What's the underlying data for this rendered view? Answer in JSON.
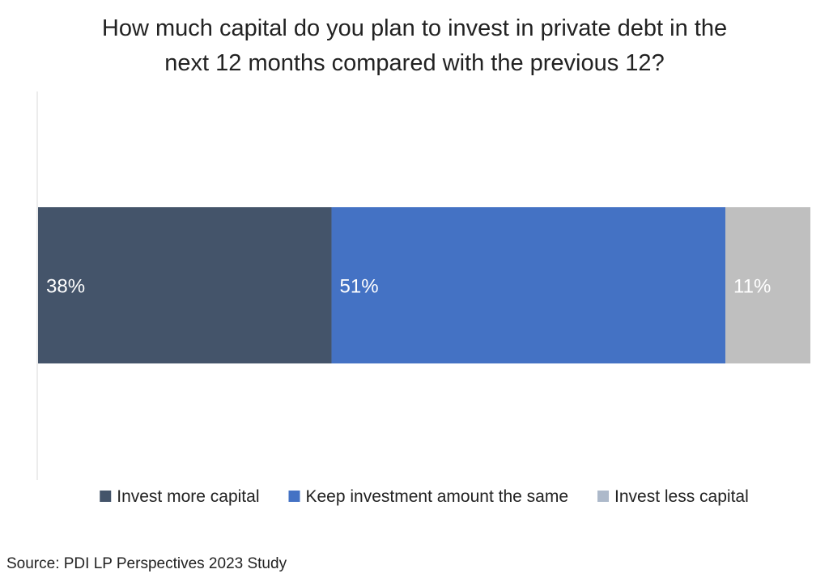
{
  "chart_data": {
    "type": "bar",
    "orientation": "horizontal",
    "stacked": true,
    "title_lines": [
      "How much capital do you plan to invest in private debt in the",
      "next 12 months compared with the previous 12?"
    ],
    "categories": [
      ""
    ],
    "series": [
      {
        "name": "Invest more capital",
        "values": [
          38
        ],
        "label": "38%",
        "color": "#44546a",
        "label_color": "#ffffff"
      },
      {
        "name": "Keep investment amount the same",
        "values": [
          51
        ],
        "label": "51%",
        "color": "#4472c4",
        "label_color": "#ffffff"
      },
      {
        "name": "Invest less capital",
        "values": [
          11
        ],
        "label": "11%",
        "color": "#bfbfbf",
        "label_color": "#ffffff"
      }
    ],
    "legend_colors": [
      "#44546a",
      "#4472c4",
      "#adb9ca"
    ],
    "xlim": [
      0,
      100
    ],
    "grid": false,
    "legend_position": "bottom",
    "source": "Source: PDI LP Perspectives 2023 Study"
  }
}
